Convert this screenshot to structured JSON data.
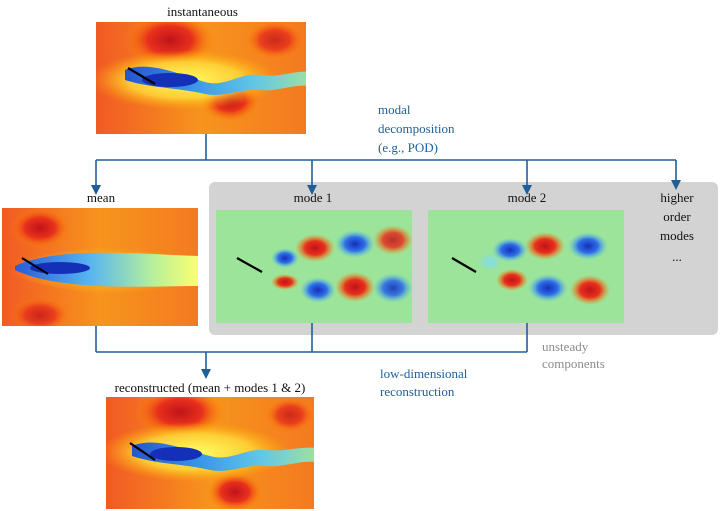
{
  "panels": {
    "instantaneous": {
      "label": "instantaneous"
    },
    "mean": {
      "label": "mean"
    },
    "mode1": {
      "label": "mode 1"
    },
    "mode2": {
      "label": "mode 2"
    },
    "reconstructed": {
      "label": "reconstructed (mean + modes 1 & 2)"
    }
  },
  "higher_modes": {
    "line1": "higher",
    "line2": "order",
    "line3": "modes",
    "ellipsis": "..."
  },
  "annotations": {
    "decomposition": {
      "line1": "modal",
      "line2": "decomposition",
      "line3": "(e.g., POD)"
    },
    "unsteady": {
      "line1": "unsteady",
      "line2": "components"
    },
    "reconstruction": {
      "line1": "low-dimensional",
      "line2": "reconstruction"
    }
  },
  "colors": {
    "arrow": "#1f5f99",
    "annotation_text": "#1f5f99",
    "unsteady_box": "#d3d3d3",
    "unsteady_text": "#8c8c8c"
  }
}
